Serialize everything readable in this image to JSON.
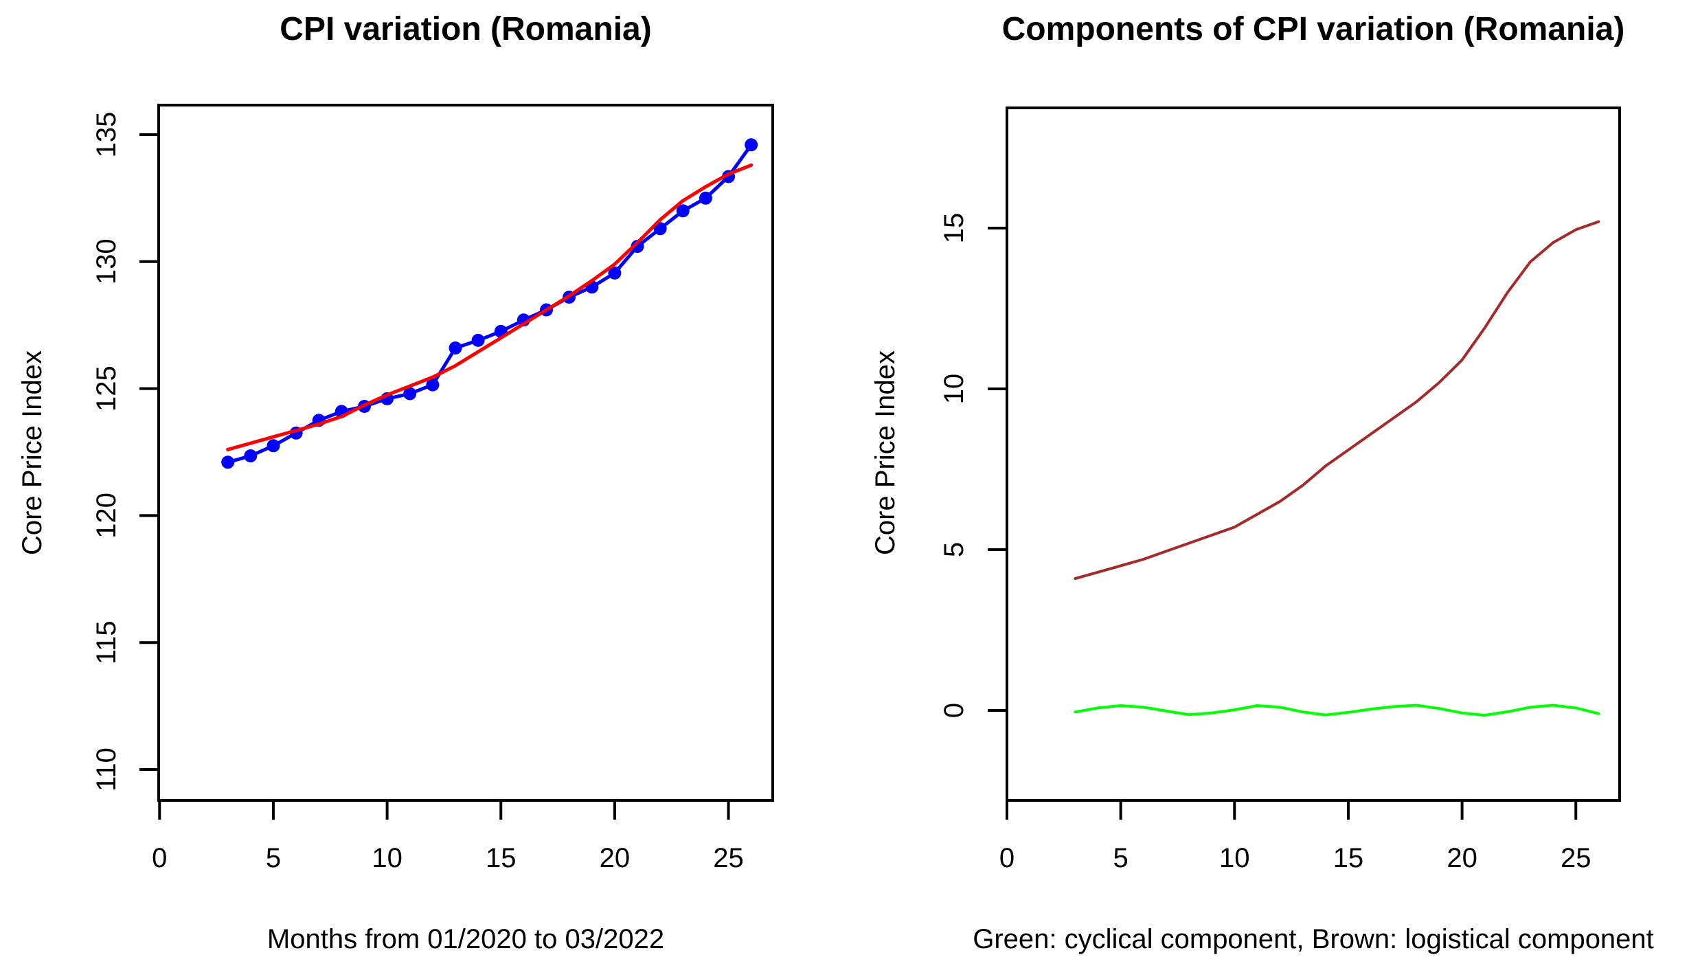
{
  "figure": {
    "background": "#ffffff",
    "axis_color": "#000000"
  },
  "chart_data": [
    {
      "type": "line",
      "title": "CPI variation (Romania)",
      "xlabel": "Months from 01/2020 to 03/2022",
      "ylabel": "Core Price Index",
      "x_ticks": [
        0,
        5,
        10,
        15,
        20,
        25
      ],
      "y_ticks": [
        110,
        115,
        120,
        125,
        130,
        135
      ],
      "xlim": [
        0,
        26.9
      ],
      "ylim": [
        108.8,
        136.2
      ],
      "grid": false,
      "x": [
        3,
        4,
        5,
        6,
        7,
        8,
        9,
        10,
        11,
        12,
        13,
        14,
        15,
        16,
        17,
        18,
        19,
        20,
        21,
        22,
        23,
        24,
        25,
        26
      ],
      "series": [
        {
          "id": "blue-observed",
          "color": "#0000ff",
          "marker": "circle",
          "values": [
            122.1,
            122.35,
            122.75,
            123.25,
            123.75,
            124.1,
            124.3,
            124.6,
            124.8,
            125.15,
            126.6,
            126.9,
            127.25,
            127.7,
            128.1,
            128.6,
            129.0,
            129.55,
            130.6,
            131.3,
            132.0,
            132.5,
            133.35,
            134.6
          ]
        },
        {
          "id": "red-smooth",
          "color": "#ff0000",
          "marker": "none",
          "values": [
            122.6,
            122.85,
            123.1,
            123.35,
            123.6,
            123.9,
            124.35,
            124.75,
            125.1,
            125.45,
            125.9,
            126.45,
            127.0,
            127.55,
            128.1,
            128.65,
            129.25,
            129.9,
            130.75,
            131.65,
            132.4,
            132.95,
            133.45,
            133.8
          ]
        }
      ]
    },
    {
      "type": "line",
      "title": "Components of CPI variation (Romania)",
      "xlabel": "Green: cyclical component, Brown: logistical component",
      "ylabel": "Core Price Index",
      "x_ticks": [
        0,
        5,
        10,
        15,
        20,
        25
      ],
      "y_ticks": [
        0,
        5,
        10,
        15
      ],
      "xlim": [
        0,
        26.9
      ],
      "ylim": [
        -2.8,
        18.8
      ],
      "grid": false,
      "x": [
        3,
        4,
        5,
        6,
        7,
        8,
        9,
        10,
        11,
        12,
        13,
        14,
        15,
        16,
        17,
        18,
        19,
        20,
        21,
        22,
        23,
        24,
        25,
        26
      ],
      "series": [
        {
          "id": "brown-logistical",
          "name": "logistical component",
          "color": "#a52a2a",
          "marker": "none",
          "values": [
            4.1,
            4.3,
            4.5,
            4.7,
            4.95,
            5.2,
            5.45,
            5.7,
            6.1,
            6.5,
            7.0,
            7.6,
            8.1,
            8.6,
            9.1,
            9.6,
            10.2,
            10.9,
            11.9,
            13.0,
            13.95,
            14.55,
            14.95,
            15.2
          ]
        },
        {
          "id": "green-cyclical",
          "name": "cyclical component",
          "color": "#00ff00",
          "marker": "none",
          "values": [
            -0.05,
            0.08,
            0.15,
            0.1,
            -0.02,
            -0.13,
            -0.08,
            0.02,
            0.15,
            0.1,
            -0.05,
            -0.14,
            -0.06,
            0.04,
            0.12,
            0.16,
            0.06,
            -0.08,
            -0.15,
            -0.04,
            0.1,
            0.16,
            0.08,
            -0.1
          ]
        }
      ]
    }
  ]
}
